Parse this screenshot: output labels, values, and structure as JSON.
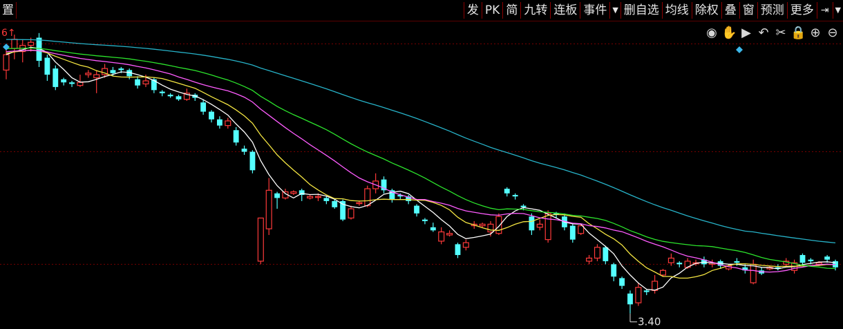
{
  "toolbar": {
    "left_label": "置",
    "items": [
      "发",
      "PK",
      "简",
      "九转",
      "连板",
      "事件",
      "▼",
      "删自选",
      "均线",
      "除权",
      "叠",
      "窗",
      "预测",
      "更多",
      "⇥",
      "▼"
    ]
  },
  "tools": [
    {
      "name": "eye-icon",
      "glyph": "◉"
    },
    {
      "name": "hand-icon",
      "glyph": "✋"
    },
    {
      "name": "play-icon",
      "glyph": "▶"
    },
    {
      "name": "undo-icon",
      "glyph": "↶"
    },
    {
      "name": "scissors-icon",
      "glyph": "✂"
    },
    {
      "name": "lock-icon",
      "glyph": "🔒"
    },
    {
      "name": "zoom-in-icon",
      "glyph": "⊕"
    },
    {
      "name": "zoom-out-icon",
      "glyph": "⊖"
    }
  ],
  "corner_label": "6↑",
  "min_label": "3.40",
  "colors": {
    "up": "#ff3a3a",
    "down": "#54ffff",
    "ma5": "#ffffff",
    "ma10": "#f5e642",
    "ma20": "#ff5cff",
    "ma30": "#2ce42c",
    "ma60": "#27b3c9",
    "grid": "#7a0000"
  },
  "chart_data": {
    "type": "candlestick",
    "ylim": [
      3.3,
      5.3
    ],
    "candles": [
      [
        4.98,
        5.08,
        5.11,
        4.92
      ],
      [
        5.12,
        5.18,
        5.21,
        5.05
      ],
      [
        5.1,
        5.14,
        5.18,
        5.03
      ],
      [
        5.14,
        5.16,
        5.19,
        5.1
      ],
      [
        5.19,
        5.04,
        5.22,
        5.0
      ],
      [
        5.06,
        4.95,
        5.08,
        4.91
      ],
      [
        4.99,
        4.87,
        5.01,
        4.85
      ],
      [
        4.92,
        4.9,
        4.93,
        4.88
      ],
      [
        4.9,
        4.89,
        4.91,
        4.87
      ],
      [
        4.88,
        4.9,
        4.95,
        4.87
      ],
      [
        4.95,
        4.96,
        4.98,
        4.93
      ],
      [
        4.93,
        4.95,
        4.98,
        4.83
      ],
      [
        4.95,
        4.99,
        5.02,
        4.93
      ],
      [
        4.98,
        4.96,
        5.0,
        4.94
      ],
      [
        4.99,
        4.98,
        5.0,
        4.96
      ],
      [
        4.98,
        4.94,
        4.99,
        4.92
      ],
      [
        4.92,
        4.88,
        4.94,
        4.86
      ],
      [
        4.89,
        4.91,
        4.95,
        4.87
      ],
      [
        4.92,
        4.85,
        4.93,
        4.83
      ],
      [
        4.84,
        4.83,
        4.85,
        4.81
      ],
      [
        4.82,
        4.81,
        4.83,
        4.8
      ],
      [
        4.81,
        4.79,
        4.82,
        4.78
      ],
      [
        4.79,
        4.83,
        4.86,
        4.78
      ],
      [
        4.82,
        4.8,
        4.83,
        4.78
      ],
      [
        4.77,
        4.71,
        4.79,
        4.69
      ],
      [
        4.71,
        4.66,
        4.72,
        4.64
      ],
      [
        4.66,
        4.62,
        4.68,
        4.6
      ],
      [
        4.62,
        4.65,
        4.67,
        4.6
      ],
      [
        4.59,
        4.51,
        4.61,
        4.49
      ],
      [
        4.47,
        4.45,
        4.49,
        4.43
      ],
      [
        4.45,
        4.33,
        4.46,
        4.31
      ],
      [
        3.74,
        4.02,
        4.02,
        3.72
      ],
      [
        3.95,
        4.2,
        4.28,
        3.91
      ],
      [
        4.18,
        4.15,
        4.19,
        4.08
      ],
      [
        4.15,
        4.19,
        4.21,
        4.14
      ],
      [
        4.18,
        4.19,
        4.2,
        4.17
      ],
      [
        4.2,
        4.17,
        4.21,
        4.13
      ],
      [
        4.15,
        4.16,
        4.17,
        4.14
      ],
      [
        4.16,
        4.16,
        4.18,
        4.13
      ],
      [
        4.15,
        4.13,
        4.16,
        4.11
      ],
      [
        4.13,
        4.09,
        4.14,
        4.08
      ],
      [
        4.13,
        4.01,
        4.14,
        4.0
      ],
      [
        4.02,
        4.08,
        4.1,
        4.01
      ],
      [
        4.12,
        4.12,
        4.13,
        4.1
      ],
      [
        4.1,
        4.21,
        4.23,
        4.09
      ],
      [
        4.21,
        4.26,
        4.31,
        4.18
      ],
      [
        4.27,
        4.2,
        4.29,
        4.18
      ],
      [
        4.2,
        4.14,
        4.21,
        4.12
      ],
      [
        4.17,
        4.16,
        4.18,
        4.14
      ],
      [
        4.16,
        4.13,
        4.17,
        4.11
      ],
      [
        4.1,
        4.05,
        4.11,
        4.03
      ],
      [
        4.01,
        4.0,
        4.02,
        3.98
      ],
      [
        3.96,
        3.94,
        3.99,
        3.93
      ],
      [
        3.87,
        3.93,
        3.96,
        3.85
      ],
      [
        3.91,
        3.92,
        3.94,
        3.9
      ],
      [
        3.85,
        3.78,
        3.86,
        3.76
      ],
      [
        3.83,
        3.86,
        3.88,
        3.81
      ],
      [
        3.97,
        3.98,
        4.0,
        3.95
      ],
      [
        3.97,
        3.98,
        3.99,
        3.96
      ],
      [
        3.93,
        3.98,
        4.0,
        3.9
      ],
      [
        3.92,
        4.03,
        4.05,
        3.91
      ],
      [
        4.21,
        4.18,
        4.22,
        4.16
      ],
      [
        4.17,
        4.16,
        4.18,
        4.14
      ],
      [
        4.1,
        4.09,
        4.11,
        4.07
      ],
      [
        4.03,
        3.94,
        4.05,
        3.91
      ],
      [
        3.96,
        3.98,
        4.01,
        3.94
      ],
      [
        3.88,
        4.05,
        4.07,
        3.86
      ],
      [
        4.05,
        4.04,
        4.06,
        4.02
      ],
      [
        4.03,
        3.96,
        4.05,
        3.94
      ],
      [
        3.97,
        3.88,
        3.98,
        3.86
      ],
      [
        3.92,
        3.97,
        3.98,
        3.91
      ],
      [
        3.74,
        3.76,
        3.78,
        3.72
      ],
      [
        3.76,
        3.83,
        3.85,
        3.74
      ],
      [
        3.83,
        3.74,
        3.84,
        3.72
      ],
      [
        3.72,
        3.64,
        3.73,
        3.61
      ],
      [
        3.63,
        3.58,
        3.64,
        3.56
      ],
      [
        3.53,
        3.46,
        3.55,
        3.4
      ],
      [
        3.47,
        3.57,
        3.6,
        3.45
      ],
      [
        3.55,
        3.54,
        3.56,
        3.52
      ],
      [
        3.55,
        3.61,
        3.65,
        3.53
      ],
      [
        3.65,
        3.68,
        3.69,
        3.64
      ],
      [
        3.73,
        3.76,
        3.79,
        3.71
      ],
      [
        3.73,
        3.72,
        3.74,
        3.7
      ],
      [
        3.7,
        3.74,
        3.76,
        3.69
      ],
      [
        3.73,
        3.73,
        3.75,
        3.71
      ],
      [
        3.75,
        3.72,
        3.77,
        3.7
      ],
      [
        3.72,
        3.73,
        3.75,
        3.7
      ],
      [
        3.74,
        3.71,
        3.75,
        3.69
      ],
      [
        3.69,
        3.71,
        3.72,
        3.68
      ],
      [
        3.74,
        3.73,
        3.76,
        3.71
      ],
      [
        3.7,
        3.68,
        3.72,
        3.66
      ],
      [
        3.6,
        3.72,
        3.75,
        3.59
      ],
      [
        3.68,
        3.66,
        3.7,
        3.65
      ],
      [
        3.69,
        3.7,
        3.71,
        3.68
      ],
      [
        3.7,
        3.69,
        3.72,
        3.68
      ],
      [
        3.72,
        3.74,
        3.76,
        3.71
      ],
      [
        3.68,
        3.73,
        3.75,
        3.66
      ],
      [
        3.78,
        3.73,
        3.79,
        3.71
      ],
      [
        3.75,
        3.74,
        3.76,
        3.72
      ],
      [
        3.72,
        3.73,
        3.74,
        3.71
      ],
      [
        3.77,
        3.75,
        3.78,
        3.73
      ],
      [
        3.74,
        3.7,
        3.75,
        3.68
      ]
    ],
    "series": [
      {
        "period": 5,
        "color_key": "ma5"
      },
      {
        "period": 10,
        "color_key": "ma10"
      },
      {
        "period": 20,
        "color_key": "ma20"
      },
      {
        "period": 30,
        "color_key": "ma30"
      },
      {
        "period": 60,
        "color_key": "ma60"
      }
    ],
    "ma_seed": {
      "ma5": 5.08,
      "ma10": 5.09,
      "ma20": 5.1,
      "ma30": 5.12,
      "ma60": 5.18
    },
    "annotation_min": 3.4,
    "grid": true
  }
}
